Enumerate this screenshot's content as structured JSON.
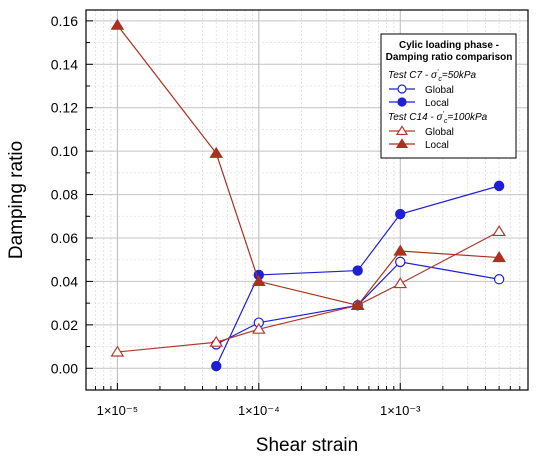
{
  "chart_data": {
    "type": "line",
    "title": "",
    "xlabel": "Shear strain",
    "ylabel": "Damping ratio",
    "xscale": "log",
    "xlim": [
      6e-06,
      0.008
    ],
    "ylim": [
      -0.01,
      0.165
    ],
    "grid": true,
    "legend_position": "top-right",
    "legend_title": [
      "Cylic loading phase -",
      "Damping ratio comparison"
    ],
    "y_ticks": [
      {
        "value": 0.0,
        "label": "0.00"
      },
      {
        "value": 0.02,
        "label": "0.02"
      },
      {
        "value": 0.04,
        "label": "0.04"
      },
      {
        "value": 0.06,
        "label": "0.06"
      },
      {
        "value": 0.08,
        "label": "0.08"
      },
      {
        "value": 0.1,
        "label": "0.10"
      },
      {
        "value": 0.12,
        "label": "0.12"
      },
      {
        "value": 0.14,
        "label": "0.14"
      },
      {
        "value": 0.16,
        "label": "0.16"
      }
    ],
    "x_ticks": [
      {
        "value": 1e-05,
        "label": "1×10⁻⁵"
      },
      {
        "value": 0.0001,
        "label": "1×10⁻⁴"
      },
      {
        "value": 0.001,
        "label": "1×10⁻³"
      }
    ],
    "legend_groups": [
      {
        "label": "Test C7 - σ'c=50kPa",
        "series": [
          0,
          1
        ]
      },
      {
        "label": "Test C14 - σ'c=100kPa",
        "series": [
          2,
          3
        ]
      }
    ],
    "series": [
      {
        "name": "Global",
        "color": "#1f1fd6",
        "marker": "circle",
        "filled": false,
        "x": [
          5e-05,
          0.0001,
          0.0005,
          0.001,
          0.005
        ],
        "y": [
          0.011,
          0.021,
          0.029,
          0.049,
          0.041
        ]
      },
      {
        "name": "Local",
        "color": "#1f1fd6",
        "marker": "circle",
        "filled": true,
        "x": [
          5e-05,
          0.0001,
          0.0005,
          0.001,
          0.005
        ],
        "y": [
          0.001,
          0.043,
          0.045,
          0.071,
          0.084
        ]
      },
      {
        "name": "Global",
        "color": "#b03a2e",
        "marker": "triangle",
        "filled": false,
        "x": [
          1e-05,
          5e-05,
          0.0001,
          0.0005,
          0.001,
          0.005
        ],
        "y": [
          0.0075,
          0.012,
          0.018,
          0.029,
          0.039,
          0.063
        ]
      },
      {
        "name": "Local",
        "color": "#a8321f",
        "marker": "triangle",
        "filled": true,
        "x": [
          1e-05,
          5e-05,
          0.0001,
          0.0005,
          0.001,
          0.005
        ],
        "y": [
          0.158,
          0.099,
          0.04,
          0.029,
          0.054,
          0.051
        ]
      }
    ]
  }
}
